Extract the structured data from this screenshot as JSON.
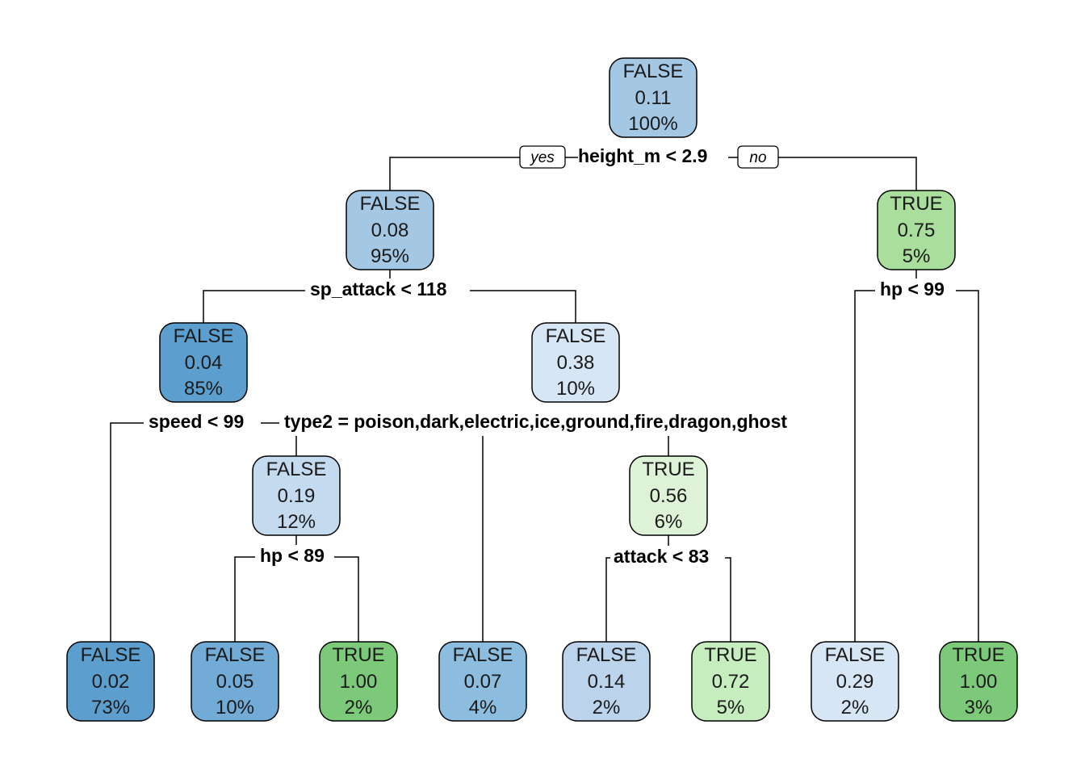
{
  "tree": {
    "edge_labels": {
      "yes": "yes",
      "no": "no"
    },
    "nodes": [
      {
        "id": "n1",
        "class": "FALSE",
        "prob": "0.11",
        "pct": "100%",
        "fill": "#a4c8e3"
      },
      {
        "id": "n2",
        "class": "FALSE",
        "prob": "0.08",
        "pct": "95%",
        "fill": "#a4c8e3"
      },
      {
        "id": "n3",
        "class": "TRUE",
        "prob": "0.75",
        "pct": "5%",
        "fill": "#a9de9d"
      },
      {
        "id": "n4",
        "class": "FALSE",
        "prob": "0.04",
        "pct": "85%",
        "fill": "#5c9fcf"
      },
      {
        "id": "n5",
        "class": "FALSE",
        "prob": "0.38",
        "pct": "10%",
        "fill": "#d6e6f4"
      },
      {
        "id": "n8",
        "class": "FALSE",
        "prob": "0.19",
        "pct": "12%",
        "fill": "#c4daef"
      },
      {
        "id": "n11",
        "class": "TRUE",
        "prob": "0.56",
        "pct": "6%",
        "fill": "#def2d8"
      },
      {
        "id": "l1",
        "class": "FALSE",
        "prob": "0.02",
        "pct": "73%",
        "fill": "#5c9fcf"
      },
      {
        "id": "l2",
        "class": "FALSE",
        "prob": "0.05",
        "pct": "10%",
        "fill": "#72abd6"
      },
      {
        "id": "l3",
        "class": "TRUE",
        "prob": "1.00",
        "pct": "2%",
        "fill": "#7cc97a"
      },
      {
        "id": "l4",
        "class": "FALSE",
        "prob": "0.07",
        "pct": "4%",
        "fill": "#8cbcde"
      },
      {
        "id": "l5",
        "class": "FALSE",
        "prob": "0.14",
        "pct": "2%",
        "fill": "#bcd3ec"
      },
      {
        "id": "l6",
        "class": "TRUE",
        "prob": "0.72",
        "pct": "5%",
        "fill": "#c6edbd"
      },
      {
        "id": "l7",
        "class": "FALSE",
        "prob": "0.29",
        "pct": "2%",
        "fill": "#d6e6f4"
      },
      {
        "id": "l8",
        "class": "TRUE",
        "prob": "1.00",
        "pct": "3%",
        "fill": "#7cc97a"
      }
    ],
    "splits": [
      {
        "id": "s1",
        "label": "height_m < 2.9"
      },
      {
        "id": "s2",
        "label": "sp_attack < 118"
      },
      {
        "id": "s3",
        "label": "hp < 99"
      },
      {
        "id": "s4",
        "label": "speed < 99"
      },
      {
        "id": "s5",
        "label": "type2 = poison,dark,electric,ice,ground,fire,dragon,ghost"
      },
      {
        "id": "s8",
        "label": "hp < 89"
      },
      {
        "id": "s11",
        "label": "attack < 83"
      }
    ]
  }
}
